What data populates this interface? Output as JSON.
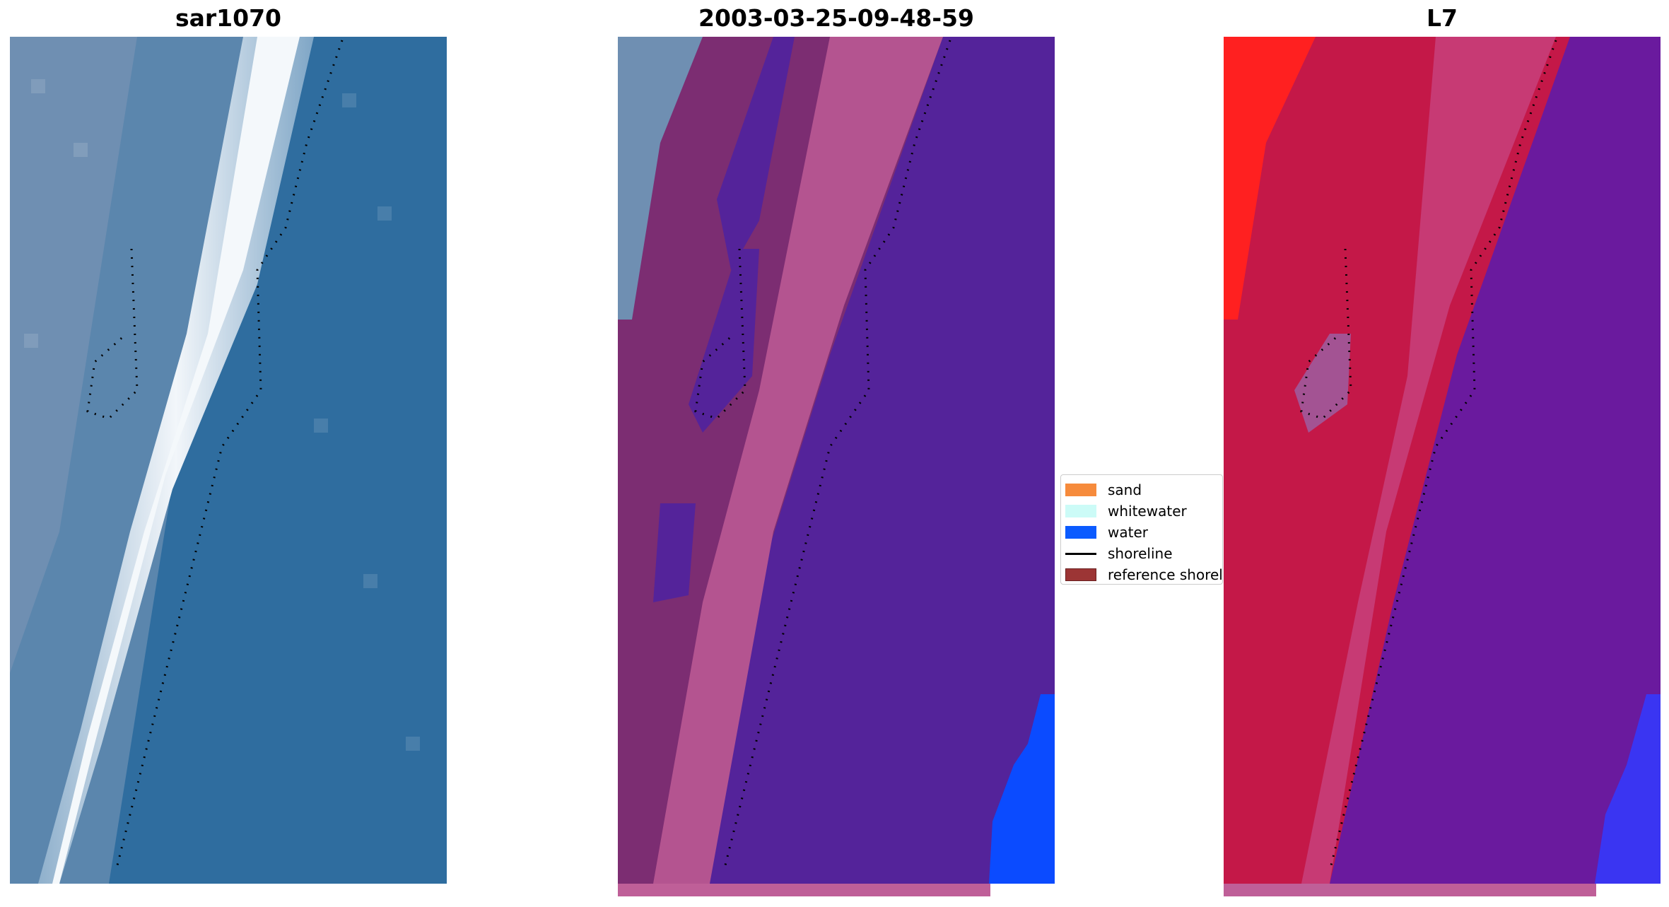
{
  "titles": {
    "left": "sar1070",
    "center": "2003-03-25-09-48-59",
    "right": "L7"
  },
  "legend": {
    "items": [
      {
        "label": "sand",
        "kind": "patch",
        "color": "#f68b3c"
      },
      {
        "label": "whitewater",
        "kind": "patch",
        "color": "#ccfbf7"
      },
      {
        "label": "water",
        "kind": "patch",
        "color": "#0b5bff"
      },
      {
        "label": "shoreline",
        "kind": "line",
        "color": "#000000"
      },
      {
        "label": "reference shoreline",
        "kind": "patch",
        "color": "#9c3535"
      }
    ]
  },
  "colors": {
    "rgb_water": "#2f6d9f",
    "rgb_surf": "#e8f0f6",
    "class_water": "#54239a",
    "class_sand": "#b45490",
    "class_dark": "#7c2d72",
    "class_bright_water": "#0b4bff",
    "l7_land": "#c41848",
    "l7_water": "#6a1a9e",
    "l7_red": "#ff2020"
  }
}
